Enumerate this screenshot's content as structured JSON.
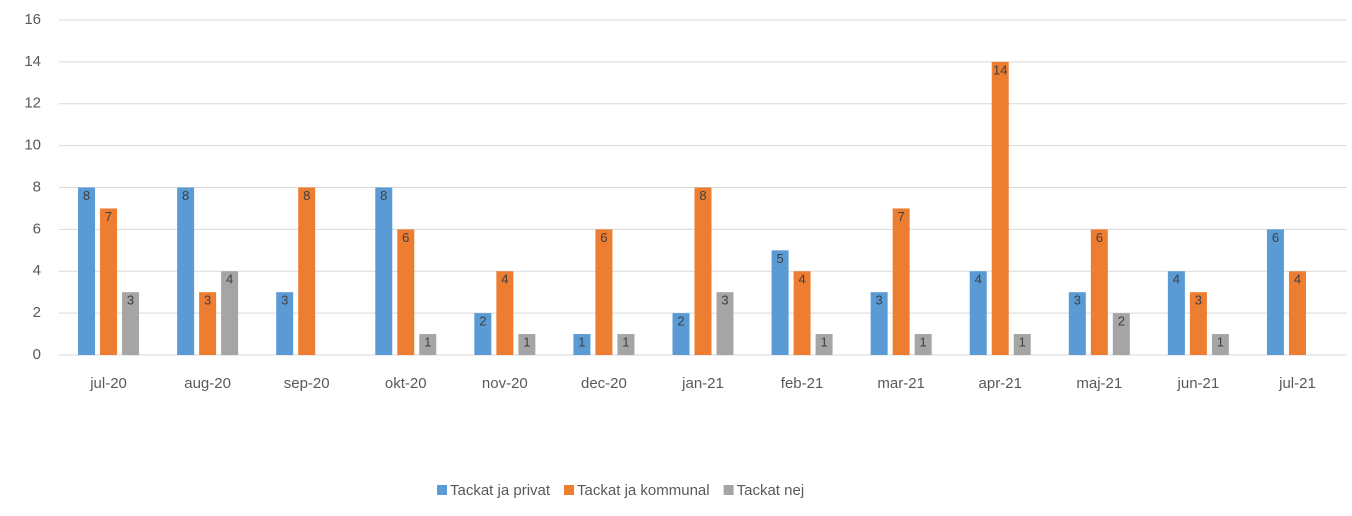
{
  "chart_data": {
    "type": "bar",
    "categories": [
      "jul-20",
      "aug-20",
      "sep-20",
      "okt-20",
      "nov-20",
      "dec-20",
      "jan-21",
      "feb-21",
      "mar-21",
      "apr-21",
      "maj-21",
      "jun-21",
      "jul-21"
    ],
    "series": [
      {
        "name": "Tackat ja privat",
        "color": "#5b9bd5",
        "values": [
          8,
          8,
          3,
          8,
          2,
          1,
          2,
          5,
          3,
          4,
          3,
          4,
          6
        ]
      },
      {
        "name": "Tackat ja kommunal",
        "color": "#ed7d31",
        "values": [
          7,
          3,
          8,
          6,
          4,
          6,
          8,
          4,
          7,
          14,
          6,
          3,
          4
        ]
      },
      {
        "name": "Tackat nej",
        "color": "#a5a5a5",
        "values": [
          3,
          4,
          null,
          1,
          1,
          1,
          3,
          1,
          1,
          1,
          2,
          1,
          null
        ]
      }
    ],
    "ylim": [
      0,
      16
    ],
    "yticks": [
      0,
      2,
      4,
      6,
      8,
      10,
      12,
      14,
      16
    ],
    "grid": true,
    "legend": "bottom"
  }
}
